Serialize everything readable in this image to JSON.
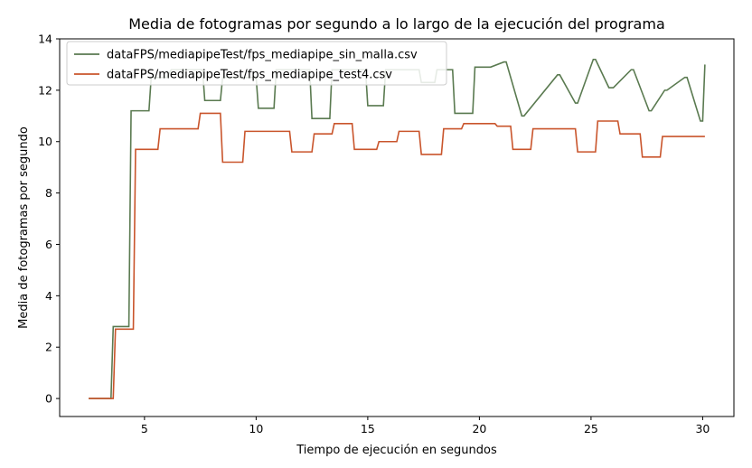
{
  "chart_data": {
    "type": "line",
    "title": "Media de fotogramas por segundo a lo largo de la ejecución del programa",
    "xlabel": "Tiempo de ejecución en segundos",
    "ylabel": "Media de fotogramas por segundo",
    "xlim": [
      1.2,
      31.4
    ],
    "ylim": [
      -0.7,
      14.0
    ],
    "xticks": [
      5,
      10,
      15,
      20,
      25,
      30
    ],
    "yticks": [
      0,
      2,
      4,
      6,
      8,
      10,
      12,
      14
    ],
    "grid": false,
    "legend_position": "upper-left",
    "series": [
      {
        "name": "dataFPS/mediapipeTest/fps_mediapipe_sin_malla.csv",
        "color": "#5a7a50",
        "x": [
          2.5,
          3.5,
          3.6,
          4.3,
          4.4,
          5.2,
          5.3,
          6.0,
          6.2,
          7.6,
          7.7,
          8.4,
          8.5,
          10.0,
          10.1,
          10.8,
          10.9,
          12.4,
          12.5,
          13.3,
          13.4,
          14.9,
          15.0,
          15.7,
          15.8,
          17.3,
          17.4,
          18.0,
          18.1,
          18.8,
          18.9,
          19.7,
          19.8,
          20.5,
          21.1,
          21.2,
          21.9,
          22.0,
          23.5,
          23.6,
          24.3,
          24.4,
          25.1,
          25.2,
          25.8,
          26.0,
          26.8,
          26.9,
          27.6,
          27.7,
          28.3,
          28.4,
          29.2,
          29.3,
          29.9,
          30.0,
          30.1
        ],
        "y": [
          0,
          0,
          2.8,
          2.8,
          11.2,
          11.2,
          12.5,
          12.5,
          12.8,
          12.8,
          11.6,
          11.6,
          12.5,
          12.5,
          11.3,
          11.3,
          12.8,
          12.8,
          10.9,
          10.9,
          12.8,
          12.8,
          11.4,
          11.4,
          12.8,
          12.8,
          12.3,
          12.3,
          12.8,
          12.8,
          11.1,
          11.1,
          12.9,
          12.9,
          13.1,
          13.1,
          11.0,
          11.0,
          12.6,
          12.6,
          11.5,
          11.5,
          13.2,
          13.2,
          12.1,
          12.1,
          12.8,
          12.8,
          11.2,
          11.2,
          12.0,
          12.0,
          12.5,
          12.5,
          10.8,
          10.8,
          13.0
        ]
      },
      {
        "name": "dataFPS/mediapipeTest/fps_mediapipe_test4.csv",
        "color": "#c9552c",
        "x": [
          2.5,
          3.6,
          3.7,
          4.5,
          4.6,
          5.6,
          5.7,
          7.4,
          7.5,
          8.4,
          8.5,
          9.4,
          9.5,
          11.5,
          11.6,
          12.5,
          12.6,
          13.4,
          13.5,
          14.3,
          14.4,
          15.4,
          15.5,
          16.3,
          16.4,
          17.3,
          17.4,
          18.3,
          18.4,
          19.2,
          19.3,
          20.1,
          20.2,
          20.7,
          20.8,
          21.4,
          21.5,
          22.3,
          22.4,
          24.3,
          24.4,
          25.2,
          25.3,
          26.2,
          26.3,
          27.2,
          27.3,
          28.1,
          28.2,
          30.1
        ],
        "y": [
          0,
          0,
          2.7,
          2.7,
          9.7,
          9.7,
          10.5,
          10.5,
          11.1,
          11.1,
          9.2,
          9.2,
          10.4,
          10.4,
          9.6,
          9.6,
          10.3,
          10.3,
          10.7,
          10.7,
          9.7,
          9.7,
          10.0,
          10.0,
          10.4,
          10.4,
          9.5,
          9.5,
          10.5,
          10.5,
          10.7,
          10.7,
          10.7,
          10.7,
          10.6,
          10.6,
          9.7,
          9.7,
          10.5,
          10.5,
          9.6,
          9.6,
          10.8,
          10.8,
          10.3,
          10.3,
          9.4,
          9.4,
          10.2,
          10.2
        ]
      }
    ]
  }
}
